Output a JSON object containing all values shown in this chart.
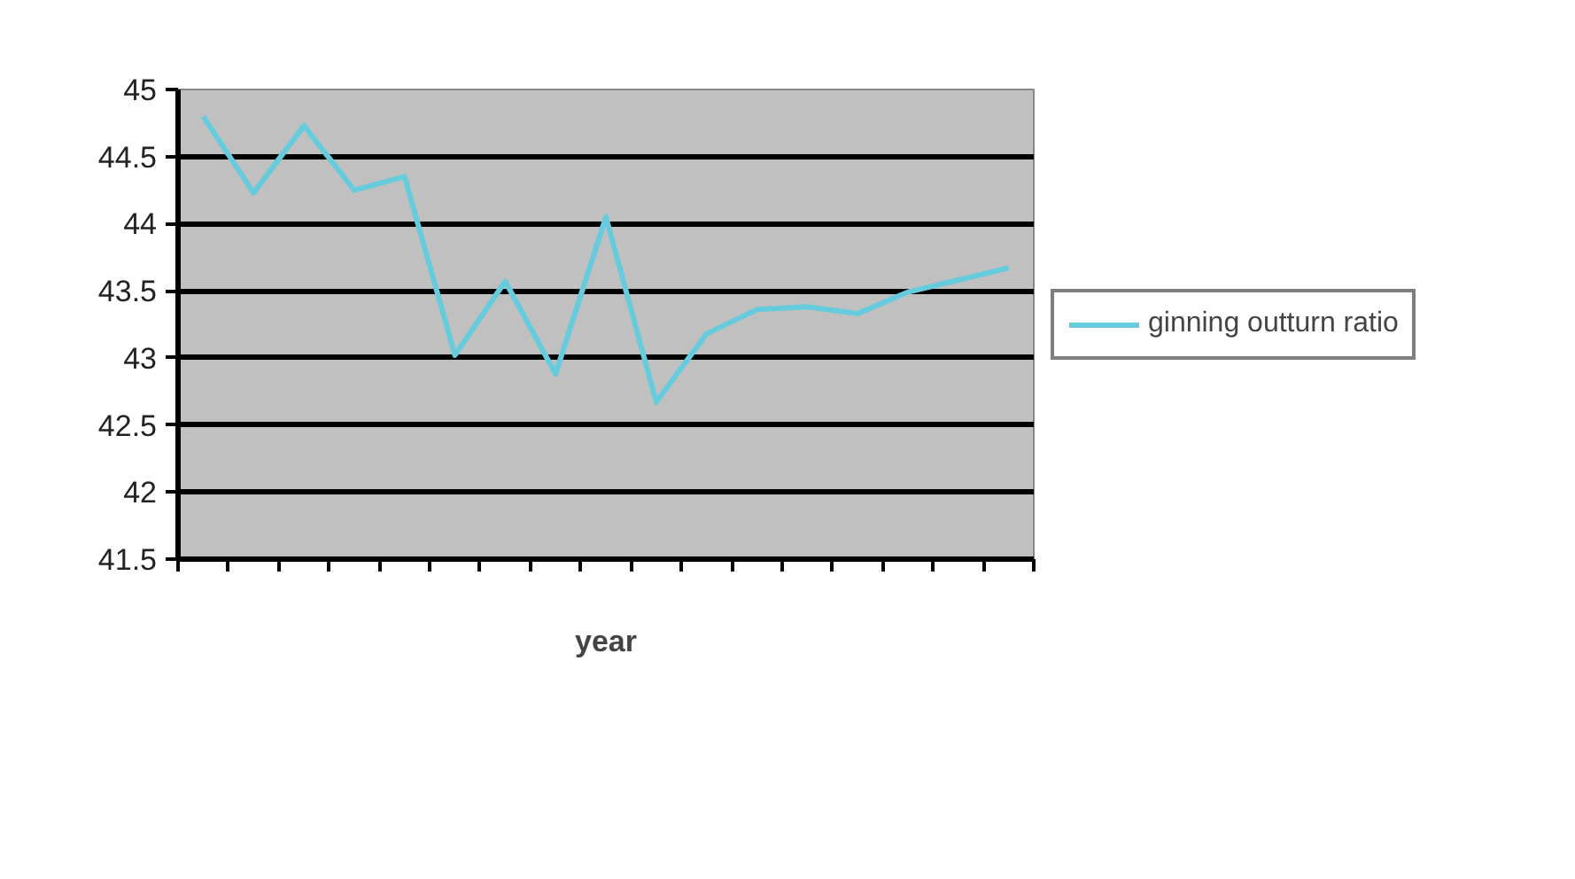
{
  "chart_data": {
    "type": "line",
    "xlabel": "year",
    "categories": [
      null,
      null,
      null,
      null,
      null,
      null,
      null,
      null,
      null,
      null,
      null,
      null,
      null,
      null,
      null,
      null,
      null
    ],
    "series": [
      {
        "name": "ginning outturn ratio",
        "color": "#66ccdd",
        "values": [
          44.8,
          44.23,
          44.73,
          44.25,
          44.35,
          43.02,
          43.57,
          42.88,
          44.05,
          42.67,
          43.18,
          43.36,
          43.38,
          43.33,
          43.49,
          43.58,
          43.67
        ]
      }
    ],
    "ylim": [
      41.5,
      45
    ],
    "yticks": [
      41.5,
      42,
      42.5,
      43,
      43.5,
      44,
      44.5,
      45
    ],
    "grid": "y",
    "legend": "right",
    "tick_labels": "y",
    "marker": "none",
    "line_style": "solid"
  }
}
